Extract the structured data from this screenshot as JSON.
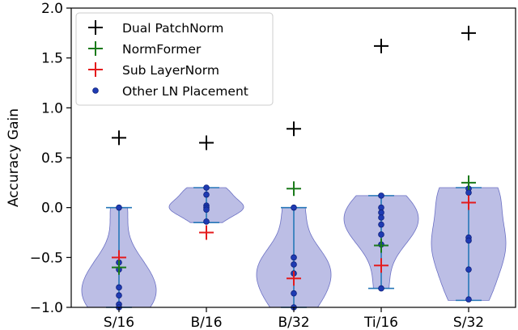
{
  "chart_data": {
    "type": "violin",
    "ylabel": "Accuracy Gain",
    "ylim": [
      -1.0,
      2.0
    ],
    "yticks": [
      "−1.0",
      "−0.5",
      "0.0",
      "0.5",
      "1.0",
      "1.5",
      "2.0"
    ],
    "ytick_values": [
      -1.0,
      -0.5,
      0.0,
      0.5,
      1.0,
      1.5,
      2.0
    ],
    "categories": [
      "S/16",
      "B/16",
      "B/32",
      "Ti/16",
      "S/32"
    ],
    "grid": false,
    "legend_position": "top-left",
    "legend": [
      {
        "label": "Dual PatchNorm",
        "marker": "plus",
        "color": "#000000"
      },
      {
        "label": "NormFormer",
        "marker": "plus",
        "color": "#1a7a1a"
      },
      {
        "label": "Sub LayerNorm",
        "marker": "plus",
        "color": "#e41a1c"
      },
      {
        "label": "Other LN Placement",
        "marker": "dot",
        "color": "#1f3bb3"
      }
    ],
    "series": {
      "dual_patchnorm": [
        0.7,
        0.65,
        0.79,
        1.62,
        1.75
      ],
      "normformer": [
        -0.6,
        null,
        0.19,
        -0.38,
        0.25
      ],
      "sub_layernorm": [
        -0.5,
        -0.25,
        -0.71,
        -0.58,
        0.05
      ],
      "other_ln_placement": [
        [
          0.0,
          -0.55,
          -0.62,
          -0.8,
          -0.88,
          -0.97,
          -1.0
        ],
        [
          0.2,
          0.13,
          0.02,
          0.0,
          -0.02,
          -0.14
        ],
        [
          0.0,
          -0.5,
          -0.57,
          -0.66,
          -0.86,
          -1.0
        ],
        [
          0.12,
          0.0,
          -0.05,
          -0.1,
          -0.17,
          -0.27,
          -0.37,
          -0.81
        ],
        [
          0.19,
          0.15,
          -0.3,
          -0.33,
          -0.62,
          -0.92
        ]
      ],
      "violin_range": [
        [
          0.0,
          -1.0
        ],
        [
          0.2,
          -0.15
        ],
        [
          0.0,
          -1.0
        ],
        [
          0.12,
          -0.81
        ],
        [
          0.2,
          -0.93
        ]
      ]
    },
    "colors": {
      "violin_fill": "#8f93d4",
      "violin_edge": "#6b70c4",
      "range_line": "#2677b8",
      "dot_fill": "#1f3bb3"
    }
  }
}
